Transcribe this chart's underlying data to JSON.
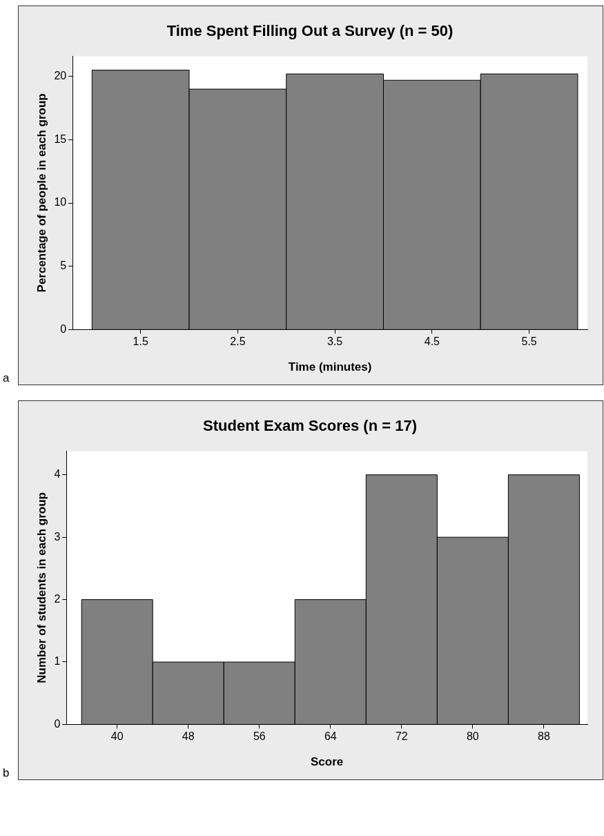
{
  "chart_data": [
    {
      "type": "histogram",
      "title": "Time Spent Filling Out a Survey (n = 50)",
      "xlabel": "Time (minutes)",
      "ylabel": "Percentage of people in each group",
      "bins": [
        1,
        2,
        3,
        4,
        5,
        6
      ],
      "values": [
        20.5,
        19,
        20.2,
        19.7,
        20.2
      ],
      "color": "#808080",
      "xlim": [
        0.8,
        6.1
      ],
      "xticks": [
        1.5,
        2.5,
        3.5,
        4.5,
        5.5
      ],
      "ylim": [
        0,
        21.6
      ],
      "yticks": [
        0,
        5,
        10,
        15,
        20
      ],
      "annotations": [
        "a"
      ]
    },
    {
      "type": "histogram",
      "title": "Student Exam Scores (n = 17)",
      "xlabel": "Score",
      "ylabel": "Number of students in each group",
      "bins": [
        36,
        44,
        52,
        60,
        68,
        76,
        84,
        92
      ],
      "values": [
        2,
        1,
        1,
        2,
        4,
        3,
        4
      ],
      "color": "#808080",
      "xlim": [
        34.3,
        92.9
      ],
      "xticks": [
        40,
        48,
        56,
        64,
        72,
        80,
        88
      ],
      "ylim": [
        0,
        4.38
      ],
      "yticks": [
        0,
        1,
        2,
        3,
        4
      ],
      "annotations": [
        "b"
      ]
    }
  ]
}
